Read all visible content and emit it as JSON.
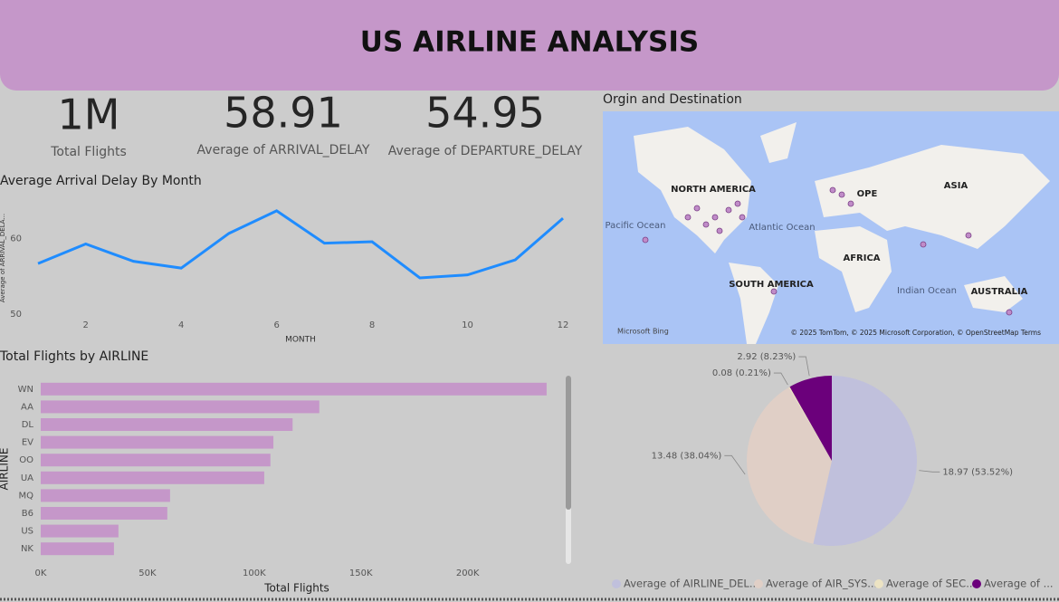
{
  "header": {
    "title": "US AIRLINE ANALYSIS"
  },
  "kpis": [
    {
      "value": "1M",
      "label": "Total Flights"
    },
    {
      "value": "58.91",
      "label": "Average of ARRIVAL_DELAY"
    },
    {
      "value": "54.95",
      "label": "Average of DEPARTURE_DELAY"
    }
  ],
  "map": {
    "title": "Orgin and Destination",
    "labels": [
      "NORTH AMERICA",
      "OPE",
      "ASIA",
      "AFRICA",
      "SOUTH AMERICA",
      "AUSTRALIA"
    ],
    "oceans": [
      "Pacific Ocean",
      "Atlantic Ocean",
      "Indian Ocean"
    ],
    "brand": "Microsoft Bing",
    "credits": "© 2025 TomTom, © 2025 Microsoft Corporation, © OpenStreetMap  Terms"
  },
  "chart_data": [
    {
      "type": "line",
      "title": "Average Arrival Delay By Month",
      "x_label": "MONTH",
      "y_label": "Average of ARRIVAL_DELA...",
      "x": [
        1,
        2,
        3,
        4,
        5,
        6,
        7,
        8,
        9,
        10,
        11,
        12
      ],
      "series": [
        {
          "name": "Average of ARRIVAL_DELAY",
          "color": "#1f8cff",
          "values": [
            56.7,
            59.3,
            57.0,
            56.1,
            60.7,
            63.7,
            59.4,
            59.6,
            54.8,
            55.2,
            57.2,
            62.7
          ]
        }
      ],
      "xlim": [
        1,
        12
      ],
      "xticks": [
        2,
        4,
        6,
        8,
        10,
        12
      ],
      "ylim": [
        50,
        65
      ],
      "yticks": [
        50,
        60
      ]
    },
    {
      "type": "hbar",
      "title": "Total Flights by AIRLINE",
      "x_label": "Total Flights",
      "y_label": "AIRLINE",
      "categories": [
        "WN",
        "AA",
        "DL",
        "EV",
        "OO",
        "UA",
        "MQ",
        "B6",
        "US",
        "NK"
      ],
      "values": [
        237000,
        130500,
        118000,
        109000,
        107600,
        104700,
        60600,
        59300,
        36400,
        34300
      ],
      "color": "#c597c9",
      "xlim": [
        0,
        240000
      ],
      "xticks": [
        {
          "value": 0,
          "label": "0K"
        },
        {
          "value": 50000,
          "label": "50K"
        },
        {
          "value": 100000,
          "label": "100K"
        },
        {
          "value": 150000,
          "label": "150K"
        },
        {
          "value": 200000,
          "label": "200K"
        }
      ]
    },
    {
      "type": "pie",
      "categories": [
        "Average of AIRLINE_DEL...",
        "Average of AIR_SYS...",
        "Average of SEC...",
        "Average of ..."
      ],
      "values": [
        18.97,
        13.48,
        0.08,
        2.92
      ],
      "value_labels": [
        "18.97 (53.52%)",
        "13.48 (38.04%)",
        "0.08 (0.21%)",
        "2.92 (8.23%)"
      ],
      "colors": [
        "#c0c0dc",
        "#e0cfc6",
        "#ece3c3",
        "#6b007b"
      ]
    }
  ]
}
